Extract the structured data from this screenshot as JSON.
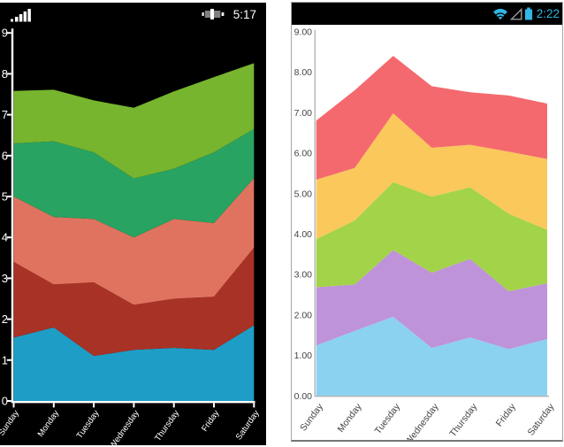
{
  "status_bars": {
    "left": {
      "time": "5:17"
    },
    "right": {
      "time": "2:22",
      "accent_color": "#33B5E5"
    }
  },
  "chart_data": [
    {
      "id": "left-phone-chart",
      "type": "area",
      "stacked": true,
      "categories": [
        "Sunday",
        "Monday",
        "Tuesday",
        "Wednesday",
        "Thursday",
        "Friday",
        "Saturday"
      ],
      "ylim": [
        0,
        9
      ],
      "ytick_labels": [
        "0",
        "1",
        "2",
        "3",
        "4",
        "5",
        "6",
        "7",
        "8",
        "9"
      ],
      "background": "#000000",
      "axis_color": "#ffffff",
      "label_color": "#ffffff",
      "legend": "none",
      "grid": "off",
      "series": [
        {
          "color": "#1E9EC6",
          "values": [
            1.55,
            1.8,
            1.1,
            1.25,
            1.3,
            1.25,
            1.85
          ]
        },
        {
          "color": "#A93226",
          "values": [
            1.85,
            1.05,
            1.8,
            1.1,
            1.2,
            1.3,
            1.9
          ]
        },
        {
          "color": "#E0735F",
          "values": [
            1.6,
            1.65,
            1.55,
            1.65,
            1.95,
            1.8,
            1.7
          ]
        },
        {
          "color": "#28A361",
          "values": [
            1.3,
            1.85,
            1.63,
            1.44,
            1.23,
            1.73,
            1.2
          ]
        },
        {
          "color": "#77B52E",
          "values": [
            1.28,
            1.26,
            1.27,
            1.73,
            1.89,
            1.84,
            1.61
          ]
        }
      ]
    },
    {
      "id": "right-phone-chart",
      "type": "area",
      "stacked": true,
      "categories": [
        "Sunday",
        "Monday",
        "Tuesday",
        "Wednesday",
        "Thursday",
        "Friday",
        "Saturday"
      ],
      "ylim": [
        0,
        9
      ],
      "ytick_labels": [
        "0.00",
        "1.00",
        "2.00",
        "3.00",
        "4.00",
        "5.00",
        "6.00",
        "7.00",
        "8.00",
        "9.00"
      ],
      "background": "#ffffff",
      "axis_color": "#b4b4b4",
      "label_color": "#434343",
      "legend": "none",
      "grid": "off",
      "series": [
        {
          "color": "#8BD2F0",
          "values": [
            1.24,
            1.6,
            1.95,
            1.18,
            1.44,
            1.15,
            1.4
          ]
        },
        {
          "color": "#BE93D9",
          "values": [
            1.44,
            1.15,
            1.65,
            1.86,
            1.94,
            1.43,
            1.38
          ]
        },
        {
          "color": "#A3D348",
          "values": [
            1.19,
            1.58,
            1.68,
            1.88,
            1.77,
            1.92,
            1.32
          ]
        },
        {
          "color": "#FAC85B",
          "values": [
            1.47,
            1.3,
            1.7,
            1.21,
            1.05,
            1.53,
            1.75
          ]
        },
        {
          "color": "#F4696E",
          "values": [
            1.46,
            1.92,
            1.42,
            1.52,
            1.3,
            1.39,
            1.37
          ]
        }
      ]
    }
  ]
}
